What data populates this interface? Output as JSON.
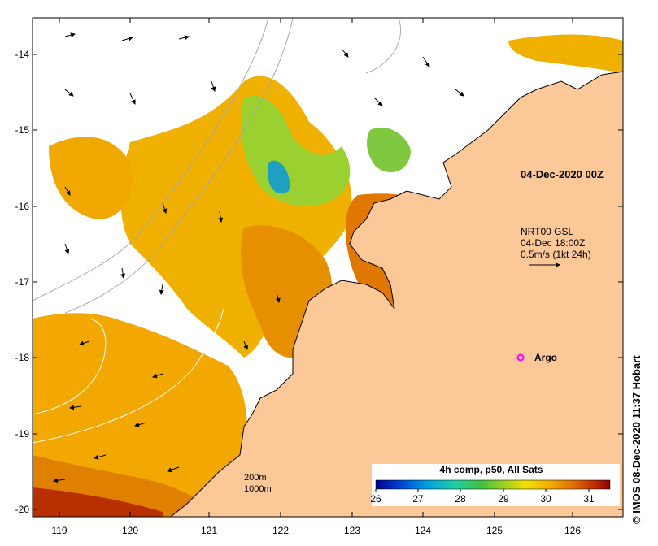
{
  "map": {
    "product_title": "04-Dec-2020 00Z",
    "current_label": {
      "line1": "NRT00 GSL",
      "line2": "04-Dec 18:00Z",
      "line3": "0.5m/s (1kt 24h)"
    },
    "argo_label": "Argo",
    "isobath_legend": [
      "200m",
      "1000m"
    ],
    "credit": "© IMOS 08-Dec-2020 11:37 Hobart",
    "colors": {
      "land": "#fcc898",
      "coast": "#000000",
      "isobath": "#aaaaaa",
      "argo": "#ff00ff"
    }
  },
  "axes": {
    "lon_ticks": [
      "119",
      "120",
      "121",
      "122",
      "123",
      "124",
      "125",
      "126"
    ],
    "lat_ticks": [
      "-14",
      "-15",
      "-16",
      "-17",
      "-18",
      "-19",
      "-20"
    ]
  },
  "colorbar": {
    "title": "4h comp, p50, All Sats",
    "ticks": [
      "26",
      "27",
      "28",
      "29",
      "30",
      "31"
    ],
    "range": [
      26,
      31.5
    ],
    "colors": [
      "#00008b",
      "#0040d0",
      "#00a0e0",
      "#20d0a0",
      "#40c040",
      "#a0d020",
      "#f0e000",
      "#f0b000",
      "#e07000",
      "#c03000",
      "#8b0000"
    ]
  }
}
